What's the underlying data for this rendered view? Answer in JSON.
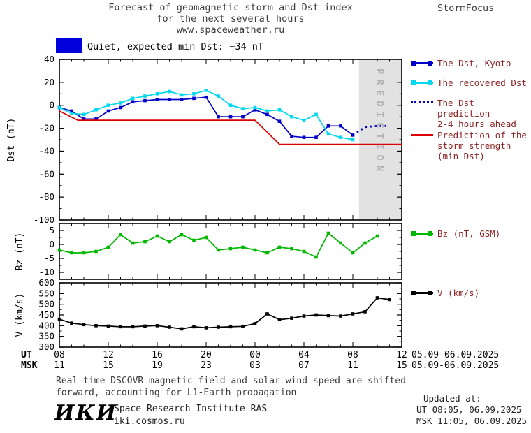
{
  "header": {
    "title_line1": "Forecast of geomagnetic storm and Dst index",
    "title_line2": "for the next several hours",
    "title_line3": "www.spaceweather.ru",
    "brand": "StormFocus"
  },
  "status": {
    "box_color": "#0000dd",
    "label": "Quiet, expected min Dst: −34 nT"
  },
  "legend": {
    "dst_kyoto": "The Dst, Kyoto",
    "recovered": "The recovered Dst",
    "prediction_line1": "The Dst prediction",
    "prediction_line2": "2-4 hours ahead",
    "storm_line1": "Prediction of the",
    "storm_line2": "storm strength",
    "storm_line3": "(min Dst)",
    "bz": "Bz (nT, GSM)",
    "v": "V (km/s)"
  },
  "prediction_band_label": "PREDICTION",
  "xaxis": {
    "ut_label": "UT",
    "msk_label": "MSK",
    "tick_hours": [
      8,
      12,
      16,
      20,
      24,
      28,
      32,
      36
    ],
    "ut_ticks": [
      "08",
      "12",
      "16",
      "20",
      "00",
      "04",
      "08",
      "12"
    ],
    "msk_ticks": [
      "11",
      "15",
      "19",
      "23",
      "03",
      "07",
      "11",
      "15"
    ],
    "ut_date": "05.09-06.09.2025",
    "msk_date": "05.09-06.09.2025"
  },
  "chart_data": [
    {
      "id": "dst",
      "type": "line",
      "title": "Dst index observed, recovered and predicted",
      "ylabel": "Dst (nT)",
      "ylim": [
        -100,
        40
      ],
      "yticks": [
        40,
        20,
        0,
        -20,
        -40,
        -60,
        -80,
        -100
      ],
      "x_hours_range": [
        8,
        36
      ],
      "prediction_band_hours": [
        32.5,
        36
      ],
      "series": [
        {
          "name": "dst-kyoto",
          "label": "The Dst, Kyoto",
          "color": "#0000c8",
          "marker": "square",
          "x_start": 8,
          "values": [
            -2,
            -5,
            -12,
            -12,
            -5,
            -2,
            3,
            4,
            5,
            5,
            5,
            6,
            7,
            -10,
            -10,
            -10,
            -4,
            -8,
            -14,
            -27,
            -28,
            -28,
            -18,
            -18,
            -26
          ]
        },
        {
          "name": "recovered-dst",
          "label": "The recovered Dst",
          "color": "#00d8ee",
          "marker": "square",
          "x_start": 8,
          "values": [
            -2,
            -7,
            -8,
            -4,
            0,
            2,
            6,
            8,
            10,
            12,
            9,
            10,
            13,
            8,
            0,
            -3,
            -2,
            -5,
            -4,
            -10,
            -13,
            -8,
            -25,
            -28,
            -30
          ]
        },
        {
          "name": "dst-prediction",
          "label": "The Dst prediction 2-4 hours ahead",
          "color": "#0000c8",
          "style": "dotted",
          "x": [
            32,
            33,
            34,
            35
          ],
          "values": [
            -26,
            -19,
            -18,
            -18
          ]
        },
        {
          "name": "storm-strength-prediction",
          "label": "Prediction of the storm strength (min Dst)",
          "color": "#dd0000",
          "x": [
            8,
            9.5,
            24,
            26,
            36
          ],
          "values": [
            -5,
            -13,
            -13,
            -34,
            -34
          ]
        }
      ]
    },
    {
      "id": "bz",
      "type": "line",
      "ylabel": "Bz (nT)",
      "ylim": [
        -12.5,
        7.5
      ],
      "yticks": [
        5,
        0,
        -5,
        -10
      ],
      "x_hours_range": [
        8,
        36
      ],
      "series": [
        {
          "name": "bz-gsm",
          "label": "Bz (nT, GSM)",
          "color": "#00b800",
          "marker": "square",
          "x_start": 8,
          "values": [
            -2,
            -3,
            -3,
            -2.5,
            -1,
            3.5,
            0.5,
            1,
            3,
            1,
            3.5,
            1.5,
            2.5,
            -2,
            -1.5,
            -1,
            -2,
            -3,
            -1,
            -1.5,
            -2.5,
            -4.5,
            4,
            0.5,
            -3,
            0.5,
            3
          ]
        }
      ]
    },
    {
      "id": "v",
      "type": "line",
      "ylabel": "V (km/s)",
      "ylim": [
        300,
        600
      ],
      "yticks": [
        600,
        550,
        500,
        450,
        400,
        350,
        300
      ],
      "x_hours_range": [
        8,
        36
      ],
      "series": [
        {
          "name": "solar-wind-speed",
          "label": "V (km/s)",
          "color": "#000000",
          "marker": "square",
          "x_start": 8,
          "values": [
            430,
            412,
            405,
            400,
            398,
            395,
            395,
            398,
            400,
            393,
            385,
            395,
            390,
            393,
            395,
            397,
            410,
            455,
            428,
            435,
            445,
            450,
            447,
            445,
            455,
            465,
            530,
            522
          ]
        }
      ]
    }
  ],
  "footnote": {
    "line1": "Real-time DSCOVR magnetic field and solar wind speed are shifted",
    "line2": "forward, accounting for L1-Earth propagation"
  },
  "footer": {
    "logo": "ИКИ",
    "institute": "Space Research Institute RAS",
    "site": "iki.cosmos.ru",
    "updated_label": "Updated at:",
    "updated_ut": "UT  08:05, 06.09.2025",
    "updated_msk": "MSK 11:05, 06.09.2025"
  }
}
